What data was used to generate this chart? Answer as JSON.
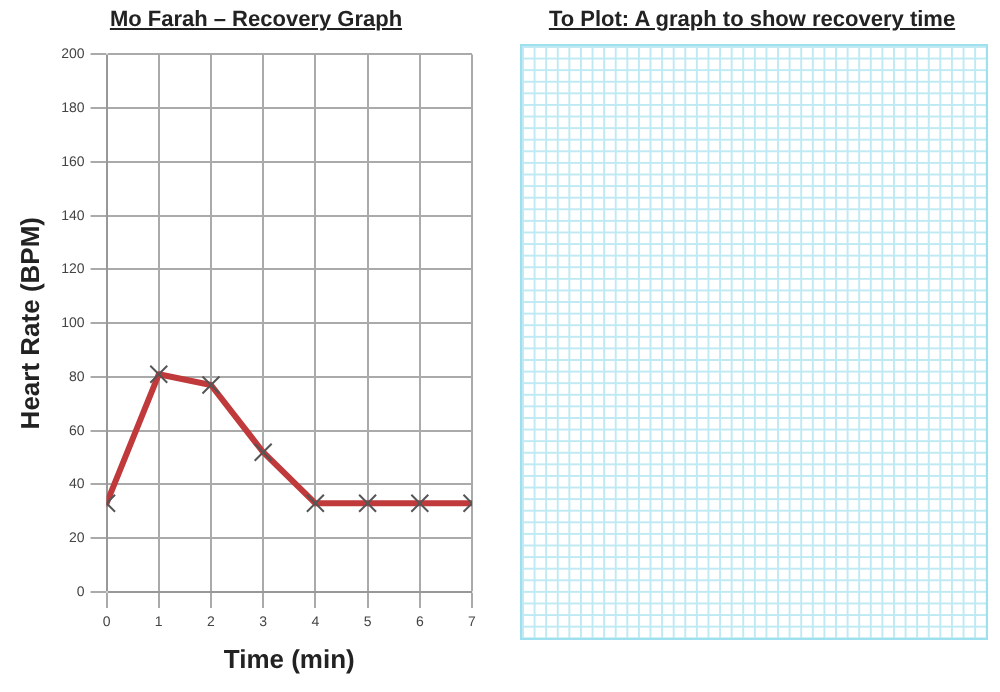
{
  "chart_data": [
    {
      "type": "line",
      "title": "Mo Farah – Recovery Graph",
      "xlabel": "Time (min)",
      "ylabel": "Heart Rate (BPM)",
      "x": [
        0,
        1,
        2,
        3,
        4,
        5,
        6,
        7
      ],
      "series": [
        {
          "color": "#c0393b",
          "values": [
            33,
            81,
            77,
            52,
            33,
            33,
            33,
            33
          ]
        }
      ],
      "xlim": [
        0,
        7
      ],
      "xticks": [
        0,
        1,
        2,
        3,
        4,
        5,
        6,
        7
      ],
      "ylim": [
        0,
        200
      ],
      "yticks": [
        0,
        20,
        40,
        60,
        80,
        100,
        120,
        140,
        160,
        180,
        200
      ],
      "grid": true,
      "legend": false,
      "marker": "cross",
      "line_style": "solid"
    },
    {
      "type": "other",
      "title": "To Plot: A graph to show recovery time"
    }
  ]
}
